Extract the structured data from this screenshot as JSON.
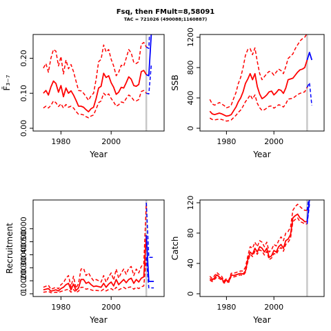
{
  "header": {
    "title": "Fsq, then FMult=8,58091",
    "subtitle": "TAC = 721026 (490088;1160887)"
  },
  "colors": {
    "historical": "#ff0000",
    "forecast": "#0000ff",
    "divider": "#c8c8c8"
  },
  "chart_data": [
    {
      "type": "line",
      "panel": "fbar",
      "xlabel": "Year",
      "ylabel": "F̄₃₋₇",
      "xlim": [
        1970,
        2020
      ],
      "ylim": [
        0,
        0.26
      ],
      "xticks": [
        1980,
        2000
      ],
      "yticks": [
        0.0,
        0.1,
        0.2
      ],
      "ytick_labels": [
        "0.00",
        "0.10",
        "0.20"
      ],
      "grid": false,
      "divider_year": 2014,
      "x": [
        1973,
        1974,
        1975,
        1976,
        1977,
        1978,
        1979,
        1980,
        1981,
        1982,
        1983,
        1984,
        1985,
        1986,
        1987,
        1988,
        1989,
        1990,
        1991,
        1992,
        1993,
        1994,
        1995,
        1996,
        1997,
        1998,
        1999,
        2000,
        2001,
        2002,
        2003,
        2004,
        2005,
        2006,
        2007,
        2008,
        2009,
        2010,
        2011,
        2012,
        2013,
        2014
      ],
      "series": [
        {
          "role": "estimate",
          "values": [
            0.1,
            0.108,
            0.095,
            0.118,
            0.135,
            0.128,
            0.103,
            0.122,
            0.09,
            0.115,
            0.1,
            0.107,
            0.095,
            0.08,
            0.063,
            0.063,
            0.06,
            0.053,
            0.047,
            0.056,
            0.06,
            0.085,
            0.115,
            0.12,
            0.157,
            0.145,
            0.15,
            0.13,
            0.117,
            0.097,
            0.103,
            0.117,
            0.115,
            0.13,
            0.147,
            0.14,
            0.122,
            0.12,
            0.125,
            0.162,
            0.165,
            0.153
          ]
        },
        {
          "role": "lower",
          "values": [
            0.058,
            0.063,
            0.058,
            0.065,
            0.078,
            0.073,
            0.062,
            0.07,
            0.058,
            0.068,
            0.06,
            0.063,
            0.058,
            0.048,
            0.04,
            0.04,
            0.038,
            0.033,
            0.03,
            0.035,
            0.038,
            0.055,
            0.073,
            0.078,
            0.1,
            0.093,
            0.098,
            0.085,
            0.075,
            0.063,
            0.067,
            0.075,
            0.073,
            0.085,
            0.095,
            0.09,
            0.08,
            0.078,
            0.082,
            0.105,
            0.108,
            0.1
          ]
        },
        {
          "role": "upper",
          "values": [
            0.172,
            0.185,
            0.16,
            0.2,
            0.225,
            0.22,
            0.178,
            0.205,
            0.155,
            0.195,
            0.17,
            0.182,
            0.162,
            0.135,
            0.108,
            0.107,
            0.1,
            0.09,
            0.08,
            0.093,
            0.1,
            0.14,
            0.19,
            0.197,
            0.238,
            0.218,
            0.225,
            0.197,
            0.178,
            0.15,
            0.16,
            0.18,
            0.177,
            0.2,
            0.225,
            0.215,
            0.188,
            0.185,
            0.19,
            0.24,
            0.245,
            0.232
          ]
        }
      ],
      "forecast": {
        "x": [
          2014,
          2015,
          2016
        ],
        "estimate": [
          0.153,
          0.15,
          0.27
        ],
        "lower": [
          0.1,
          0.098,
          0.18
        ],
        "upper": [
          0.232,
          0.228,
          0.38
        ]
      }
    },
    {
      "type": "line",
      "panel": "ssb",
      "xlabel": "Year",
      "ylabel": "SSB",
      "xlim": [
        1970,
        2020
      ],
      "ylim": [
        0,
        1200
      ],
      "xticks": [
        1980,
        2000
      ],
      "yticks": [
        0,
        400,
        800,
        1200
      ],
      "ytick_labels": [
        "0",
        "400",
        "800",
        "1200"
      ],
      "grid": false,
      "divider_year": 2014,
      "x": [
        1973,
        1974,
        1975,
        1976,
        1977,
        1978,
        1979,
        1980,
        1981,
        1982,
        1983,
        1984,
        1985,
        1986,
        1987,
        1988,
        1989,
        1990,
        1991,
        1992,
        1993,
        1994,
        1995,
        1996,
        1997,
        1998,
        1999,
        2000,
        2001,
        2002,
        2003,
        2004,
        2005,
        2006,
        2007,
        2008,
        2009,
        2010,
        2011,
        2012,
        2013,
        2014
      ],
      "series": [
        {
          "role": "estimate",
          "values": [
            225,
            190,
            180,
            190,
            200,
            190,
            175,
            160,
            165,
            180,
            230,
            280,
            350,
            400,
            480,
            590,
            650,
            720,
            640,
            720,
            550,
            450,
            390,
            410,
            440,
            480,
            490,
            440,
            470,
            510,
            500,
            460,
            530,
            640,
            650,
            660,
            700,
            740,
            770,
            780,
            800,
            900
          ]
        },
        {
          "role": "lower",
          "values": [
            135,
            115,
            110,
            115,
            120,
            115,
            105,
            95,
            100,
            110,
            140,
            170,
            210,
            240,
            290,
            350,
            390,
            440,
            385,
            440,
            330,
            270,
            235,
            245,
            265,
            290,
            295,
            265,
            285,
            310,
            300,
            280,
            320,
            385,
            390,
            395,
            420,
            445,
            460,
            470,
            480,
            540
          ]
        },
        {
          "role": "upper",
          "values": [
            380,
            320,
            305,
            320,
            340,
            320,
            300,
            270,
            280,
            305,
            390,
            470,
            590,
            670,
            800,
            960,
            1040,
            1050,
            970,
            1060,
            880,
            720,
            640,
            680,
            720,
            750,
            740,
            700,
            740,
            780,
            760,
            720,
            810,
            920,
            950,
            980,
            1050,
            1100,
            1150,
            1180,
            1200,
            1250
          ]
        }
      ],
      "forecast": {
        "x": [
          2014,
          2015,
          2016
        ],
        "estimate": [
          900,
          1000,
          900
        ],
        "lower": [
          540,
          600,
          300
        ],
        "upper": [
          1250,
          1350,
          1350
        ]
      }
    },
    {
      "type": "line",
      "panel": "recruitment",
      "xlabel": "Year",
      "ylabel": "Recruitment",
      "xlim": [
        1970,
        2020
      ],
      "ylim": [
        0,
        70000
      ],
      "xticks": [
        1980,
        2000
      ],
      "yticks": [
        0,
        10000,
        20000,
        30000,
        40000,
        50000
      ],
      "ytick_labels": [
        "0",
        "10000",
        "20000",
        "30000",
        "40000",
        "50000"
      ],
      "grid": false,
      "divider_year": 2014,
      "x": [
        1973,
        1974,
        1975,
        1976,
        1977,
        1978,
        1979,
        1980,
        1981,
        1982,
        1983,
        1984,
        1985,
        1986,
        1987,
        1988,
        1989,
        1990,
        1991,
        1992,
        1993,
        1994,
        1995,
        1996,
        1997,
        1998,
        1999,
        2000,
        2001,
        2002,
        2003,
        2004,
        2005,
        2006,
        2007,
        2008,
        2009,
        2010,
        2011,
        2012,
        2013,
        2014
      ],
      "series": [
        {
          "role": "estimate",
          "values": [
            3000,
            3500,
            4000,
            2000,
            2500,
            3000,
            2200,
            4000,
            5000,
            7000,
            8000,
            3000,
            7500,
            2500,
            4500,
            11000,
            11000,
            8000,
            9000,
            7000,
            5500,
            6000,
            5500,
            5000,
            8000,
            5000,
            7500,
            9000,
            6000,
            11000,
            7000,
            9000,
            11000,
            8500,
            11000,
            12000,
            8000,
            11000,
            9000,
            12000,
            13000,
            45000
          ]
        },
        {
          "role": "lower",
          "values": [
            1200,
            1500,
            1800,
            800,
            1000,
            1200,
            900,
            1800,
            2300,
            3000,
            3500,
            1200,
            3300,
            1000,
            2000,
            5000,
            5000,
            3500,
            4000,
            3000,
            2400,
            2600,
            2400,
            2200,
            3500,
            2200,
            3300,
            4000,
            2600,
            5000,
            3000,
            4000,
            5000,
            3700,
            5000,
            5300,
            3500,
            5000,
            4000,
            5300,
            6000,
            28000
          ]
        },
        {
          "role": "upper",
          "values": [
            5000,
            5800,
            6500,
            3500,
            4200,
            5000,
            3800,
            7000,
            8500,
            12000,
            14000,
            5200,
            13500,
            4200,
            8000,
            19000,
            19500,
            14000,
            16000,
            12500,
            10000,
            11000,
            10000,
            9000,
            14000,
            9000,
            13000,
            16000,
            10500,
            19000,
            12000,
            16000,
            19000,
            15000,
            19500,
            21000,
            14000,
            19000,
            16000,
            21000,
            23000,
            70000
          ]
        }
      ],
      "forecast": {
        "x": [
          2014,
          2015,
          2016,
          2017
        ],
        "estimate": [
          45000,
          9500,
          9500,
          9500
        ],
        "lower": [
          28000,
          4500,
          4500,
          4500
        ],
        "upper": [
          70000,
          28000,
          28000,
          28000
        ]
      }
    },
    {
      "type": "line",
      "panel": "catch",
      "xlabel": "Year",
      "ylabel": "Catch",
      "xlim": [
        1970,
        2020
      ],
      "ylim": [
        0,
        120
      ],
      "xticks": [
        1980,
        2000
      ],
      "yticks": [
        0,
        40,
        80,
        120
      ],
      "ytick_labels": [
        "0",
        "40",
        "80",
        "120"
      ],
      "grid": false,
      "divider_year": 2014,
      "x": [
        1973,
        1974,
        1975,
        1976,
        1977,
        1978,
        1979,
        1980,
        1981,
        1982,
        1983,
        1984,
        1985,
        1986,
        1987,
        1988,
        1989,
        1990,
        1991,
        1992,
        1993,
        1994,
        1995,
        1996,
        1997,
        1998,
        1999,
        2000,
        2001,
        2002,
        2003,
        2004,
        2005,
        2006,
        2007,
        2008,
        2009,
        2010,
        2011,
        2012,
        2013,
        2014
      ],
      "series": [
        {
          "role": "estimate",
          "values": [
            20,
            18,
            21,
            25,
            22,
            20,
            15,
            18,
            16,
            25,
            24,
            25,
            26,
            27,
            26,
            30,
            45,
            55,
            52,
            60,
            55,
            62,
            60,
            55,
            60,
            48,
            50,
            57,
            55,
            62,
            65,
            60,
            70,
            72,
            78,
            100,
            103,
            105,
            100,
            98,
            95,
            95
          ]
        },
        {
          "role": "lower",
          "values": [
            18,
            16,
            19,
            22,
            20,
            18,
            14,
            16,
            15,
            23,
            22,
            23,
            24,
            25,
            24,
            28,
            42,
            52,
            49,
            56,
            52,
            58,
            56,
            51,
            56,
            45,
            47,
            53,
            52,
            58,
            61,
            56,
            65,
            68,
            73,
            95,
            98,
            100,
            95,
            94,
            92,
            92
          ]
        },
        {
          "role": "upper",
          "values": [
            23,
            20,
            24,
            28,
            25,
            23,
            17,
            20,
            18,
            27,
            27,
            28,
            29,
            30,
            30,
            35,
            50,
            62,
            60,
            68,
            62,
            70,
            68,
            62,
            68,
            55,
            58,
            65,
            63,
            70,
            75,
            70,
            80,
            82,
            88,
            110,
            115,
            118,
            115,
            112,
            110,
            110
          ]
        }
      ],
      "forecast": {
        "x": [
          2014,
          2015
        ],
        "estimate": [
          95,
          125
        ],
        "lower": [
          92,
          118
        ],
        "upper": [
          110,
          135
        ]
      }
    }
  ]
}
